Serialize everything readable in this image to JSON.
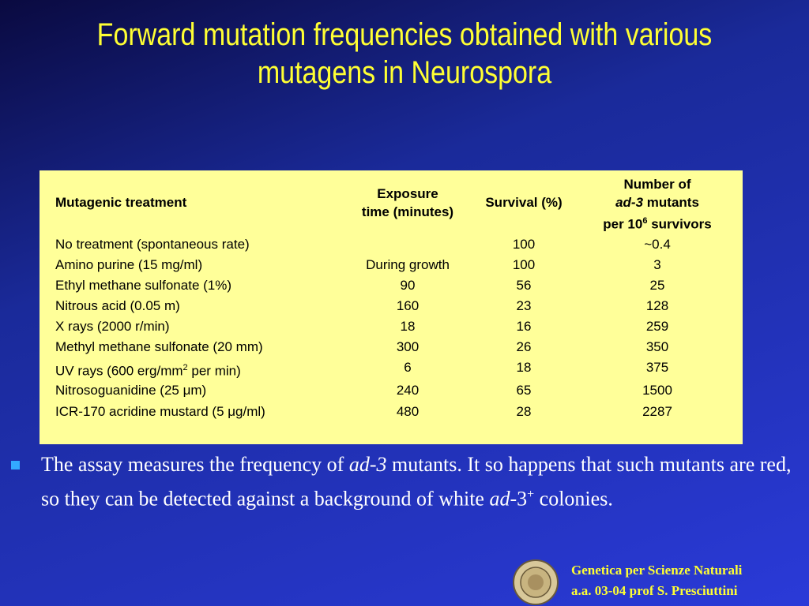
{
  "title": "Forward mutation frequencies obtained with various mutagens in Neurospora",
  "table": {
    "headers": {
      "treatment": "Mutagenic treatment",
      "exposure": [
        "Exposure",
        "time (minutes)"
      ],
      "survival": "Survival (%)",
      "mutants": {
        "line1": "Number of",
        "italic": "ad-3",
        "line2_rest": " mutants",
        "line3": "per 10",
        "sup": "6",
        "line3_rest": " survivors"
      }
    },
    "rows": [
      {
        "treatment": "No treatment (spontaneous rate)",
        "survival": "100",
        "mutants": "~0.4"
      },
      {
        "treatment": "Amino purine (15 mg/ml)",
        "exposure": "During growth",
        "survival": "100",
        "mutants": "3"
      },
      {
        "treatment": "Ethyl methane sulfonate (1%)",
        "exposure": "90",
        "survival": "56",
        "mutants": "25"
      },
      {
        "treatment": "Nitrous acid (0.05 m)",
        "exposure": "160",
        "survival": "23",
        "mutants": "128"
      },
      {
        "treatment": "X rays (2000 r/min)",
        "exposure": "18",
        "survival": "16",
        "mutants": "259"
      },
      {
        "treatment": "Methyl methane sulfonate (20 mm)",
        "exposure": "300",
        "survival": "26",
        "mutants": "350"
      },
      {
        "treatment": "UV rays (600 erg/mm",
        "treatment_sup": "2",
        "treatment_rest": " per min)",
        "exposure": "6",
        "survival": "18",
        "mutants": "375"
      },
      {
        "treatment": "Nitrosoguanidine (25 μm)",
        "exposure": "240",
        "survival": "65",
        "mutants": "1500"
      },
      {
        "treatment": "ICR-170 acridine mustard (5 μg/ml)",
        "exposure": "480",
        "survival": "28",
        "mutants": "2287"
      }
    ]
  },
  "bullet": {
    "part1": "The assay measures the frequency of ",
    "italic1": "ad-3",
    "part2": " mutants. It so happens that such mutants are red, so they can be detected against a background of white ",
    "italic2": "ad",
    "part3": "-3",
    "sup": "+",
    "part4": " colonies."
  },
  "footer": {
    "line1": "Genetica per Scienze Naturali",
    "line2": "a.a. 03-04 prof S. Presciuttini"
  }
}
